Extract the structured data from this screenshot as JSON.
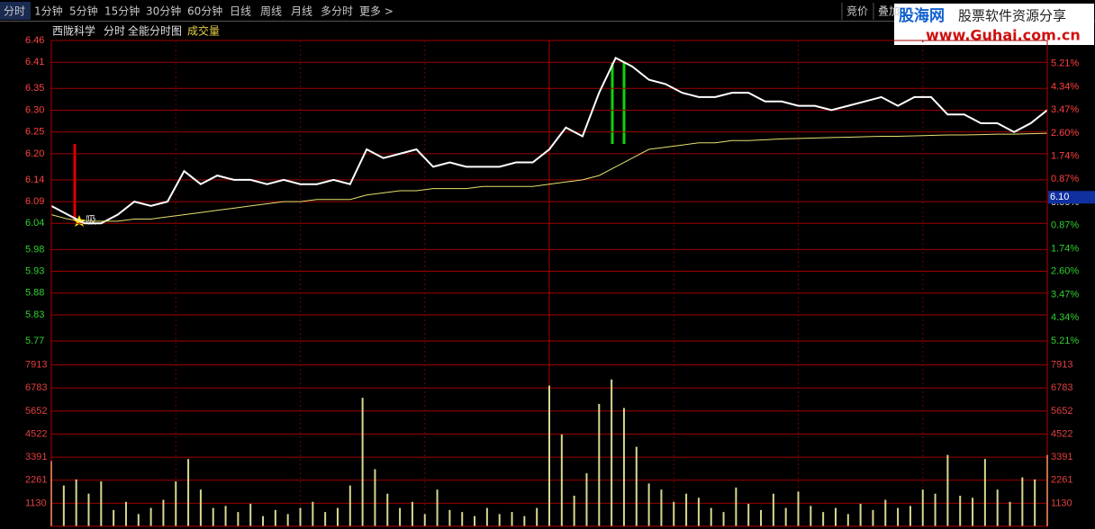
{
  "toolbar": {
    "tabs": [
      "分时",
      "1分钟",
      "5分钟",
      "15分钟",
      "30分钟",
      "60分钟",
      "日线",
      "周线",
      "月线",
      "多分时",
      "更多 >"
    ],
    "buttons": [
      "竞价",
      "叠加"
    ]
  },
  "watermark": {
    "brand": "股海网",
    "slogan": "股票软件资源分享",
    "url": "www.Guhai.com.cn"
  },
  "header": {
    "stock": "西陇科学",
    "mode": "分时",
    "view": "全能分时图",
    "indicator": "成交量"
  },
  "annotations": [
    "吸"
  ],
  "chart_data": [
    {
      "type": "line",
      "xlim": [
        0,
        240
      ],
      "xticks": [
        0,
        30,
        60,
        90,
        120,
        150,
        180,
        210,
        240
      ],
      "x": [
        0,
        4,
        8,
        12,
        16,
        20,
        24,
        28,
        32,
        36,
        40,
        44,
        48,
        52,
        56,
        60,
        64,
        68,
        72,
        76,
        80,
        84,
        88,
        92,
        96,
        100,
        104,
        108,
        112,
        116,
        120,
        124,
        128,
        132,
        136,
        140,
        144,
        148,
        152,
        156,
        160,
        164,
        168,
        172,
        176,
        180,
        184,
        188,
        192,
        196,
        200,
        204,
        208,
        212,
        216,
        220,
        224,
        228,
        232,
        236,
        240
      ],
      "series": [
        {
          "color": "#ffffff",
          "values": [
            6.08,
            6.06,
            6.04,
            6.04,
            6.06,
            6.09,
            6.08,
            6.09,
            6.16,
            6.13,
            6.15,
            6.14,
            6.14,
            6.13,
            6.14,
            6.13,
            6.13,
            6.14,
            6.13,
            6.21,
            6.19,
            6.2,
            6.21,
            6.17,
            6.18,
            6.17,
            6.17,
            6.17,
            6.18,
            6.18,
            6.21,
            6.26,
            6.24,
            6.34,
            6.42,
            6.4,
            6.37,
            6.36,
            6.34,
            6.33,
            6.33,
            6.34,
            6.34,
            6.32,
            6.32,
            6.31,
            6.31,
            6.3,
            6.31,
            6.32,
            6.33,
            6.31,
            6.33,
            6.33,
            6.29,
            6.29,
            6.27,
            6.27,
            6.25,
            6.27,
            6.3
          ]
        },
        {
          "color": "#e8e070",
          "values": [
            6.06,
            6.05,
            6.045,
            6.045,
            6.045,
            6.05,
            6.05,
            6.055,
            6.06,
            6.065,
            6.07,
            6.075,
            6.08,
            6.085,
            6.09,
            6.09,
            6.095,
            6.095,
            6.095,
            6.105,
            6.11,
            6.115,
            6.115,
            6.12,
            6.12,
            6.12,
            6.125,
            6.125,
            6.125,
            6.125,
            6.13,
            6.135,
            6.14,
            6.15,
            6.17,
            6.19,
            6.21,
            6.215,
            6.22,
            6.225,
            6.225,
            6.23,
            6.23,
            6.232,
            6.234,
            6.235,
            6.236,
            6.237,
            6.238,
            6.239,
            6.24,
            6.24,
            6.241,
            6.242,
            6.243,
            6.243,
            6.244,
            6.245,
            6.245,
            6.246,
            6.247
          ]
        }
      ],
      "ylim": [
        5.77,
        6.46
      ],
      "yticks": [
        {
          "value": 6.46,
          "label": "6.46"
        },
        {
          "value": 6.41,
          "label": "6.41"
        },
        {
          "value": 6.35,
          "label": "6.35"
        },
        {
          "value": 6.3,
          "label": "6.30"
        },
        {
          "value": 6.25,
          "label": "6.25"
        },
        {
          "value": 6.2,
          "label": "6.20"
        },
        {
          "value": 6.14,
          "label": "6.14"
        },
        {
          "value": 6.09,
          "label": "6.09"
        },
        {
          "value": 6.04,
          "label": "6.04"
        },
        {
          "value": 5.98,
          "label": "5.98"
        },
        {
          "value": 5.93,
          "label": "5.93"
        },
        {
          "value": 5.88,
          "label": "5.88"
        },
        {
          "value": 5.83,
          "label": "5.83"
        },
        {
          "value": 5.77,
          "label": "5.77"
        }
      ],
      "y2lim": [
        -5.21,
        6.08
      ],
      "y2ticks": [
        {
          "value": 5.21,
          "label": "5.21%"
        },
        {
          "value": 4.34,
          "label": "4.34%"
        },
        {
          "value": 3.47,
          "label": "3.47%"
        },
        {
          "value": 2.6,
          "label": "2.60%"
        },
        {
          "value": 1.74,
          "label": "1.74%"
        },
        {
          "value": 0.87,
          "label": "0.87%"
        },
        {
          "value": 0,
          "label": "0.00%"
        },
        {
          "value": -0.87,
          "label": "0.87%"
        },
        {
          "value": -1.74,
          "label": "1.74%"
        },
        {
          "value": -2.6,
          "label": "2.60%"
        },
        {
          "value": -3.47,
          "label": "3.47%"
        },
        {
          "value": -4.34,
          "label": "4.34%"
        },
        {
          "value": -5.21,
          "label": "5.21%"
        }
      ],
      "price_marker": {
        "value": 6.1,
        "label": "6.10"
      },
      "grid": true
    },
    {
      "type": "bar",
      "xlim": [
        0,
        240
      ],
      "x": [
        0,
        3,
        6,
        9,
        12,
        15,
        18,
        21,
        24,
        27,
        30,
        33,
        36,
        39,
        42,
        45,
        48,
        51,
        54,
        57,
        60,
        63,
        66,
        69,
        72,
        75,
        78,
        81,
        84,
        87,
        90,
        93,
        96,
        99,
        102,
        105,
        108,
        111,
        114,
        117,
        120,
        123,
        126,
        129,
        132,
        135,
        138,
        141,
        144,
        147,
        150,
        153,
        156,
        159,
        162,
        165,
        168,
        171,
        174,
        177,
        180,
        183,
        186,
        189,
        192,
        195,
        198,
        201,
        204,
        207,
        210,
        213,
        216,
        219,
        222,
        225,
        228,
        231,
        234,
        237,
        240
      ],
      "values": [
        3200,
        2000,
        2300,
        1600,
        2200,
        800,
        1200,
        600,
        900,
        1300,
        2200,
        3300,
        1800,
        900,
        1000,
        700,
        1100,
        500,
        800,
        600,
        900,
        1200,
        700,
        900,
        2000,
        6300,
        2800,
        1600,
        900,
        1200,
        600,
        1800,
        800,
        700,
        500,
        900,
        600,
        700,
        500,
        900,
        6900,
        4500,
        1500,
        2600,
        6000,
        7200,
        5800,
        3900,
        2100,
        1800,
        1200,
        1600,
        1400,
        900,
        700,
        1900,
        1100,
        800,
        1600,
        900,
        1700,
        1000,
        700,
        900,
        600,
        1100,
        800,
        1300,
        900,
        1000,
        1800,
        1600,
        3500,
        1500,
        1400,
        3300,
        1800,
        1200,
        2400,
        2300,
        3500
      ],
      "color": "#d8d890",
      "ylim": [
        0,
        9043
      ],
      "yticks": [
        7913,
        6783,
        5652,
        4522,
        3391,
        2261,
        1130
      ],
      "grid": true
    }
  ]
}
